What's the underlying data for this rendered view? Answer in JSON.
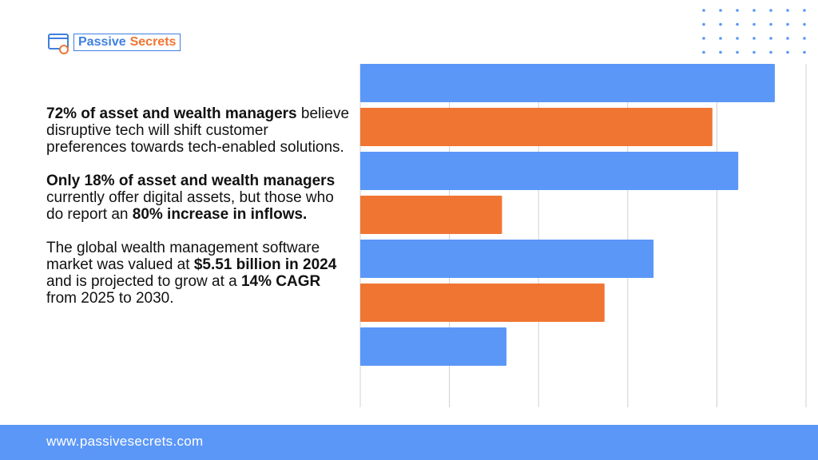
{
  "header": {
    "logo": [
      {
        "text": "Passive",
        "color": "#3f7fe0"
      },
      {
        "text": "Secrets",
        "color": "#f07533"
      }
    ]
  },
  "text": {
    "paragraphs": [
      [
        {
          "text": "72% of asset and wealth managers",
          "bold": true
        },
        {
          "text": " believe disruptive tech will shift customer preferences towards tech-enabled solutions.",
          "bold": false
        }
      ],
      [
        {
          "text": "Only 18% of asset and wealth managers",
          "bold": true
        },
        {
          "text": " currently offer digital assets, but those who do report an ",
          "bold": false
        },
        {
          "text": "80% increase in inflows.",
          "bold": true
        }
      ],
      [
        {
          "text": "The global wealth management software market was valued at ",
          "bold": false
        },
        {
          "text": "$5.51 billion in 2024",
          "bold": true
        },
        {
          "text": " and is projected to grow at a ",
          "bold": false
        },
        {
          "text": "14% CAGR",
          "bold": true
        },
        {
          "text": "  from 2025 to 2030.",
          "bold": false
        }
      ]
    ]
  },
  "chart_data": {
    "type": "bar",
    "orientation": "horizontal",
    "values": [
      4.65,
      3.95,
      4.24,
      1.59,
      3.29,
      2.74,
      1.64
    ],
    "colors": [
      "#5b97f7",
      "#f07533",
      "#5b97f7",
      "#f07533",
      "#5b97f7",
      "#f07533",
      "#5b97f7"
    ],
    "xlim": [
      0,
      5
    ],
    "xticks": [
      0,
      1,
      2,
      3,
      4,
      5
    ],
    "grid": true
  },
  "footer": {
    "url": "www.passivesecrets.com"
  }
}
